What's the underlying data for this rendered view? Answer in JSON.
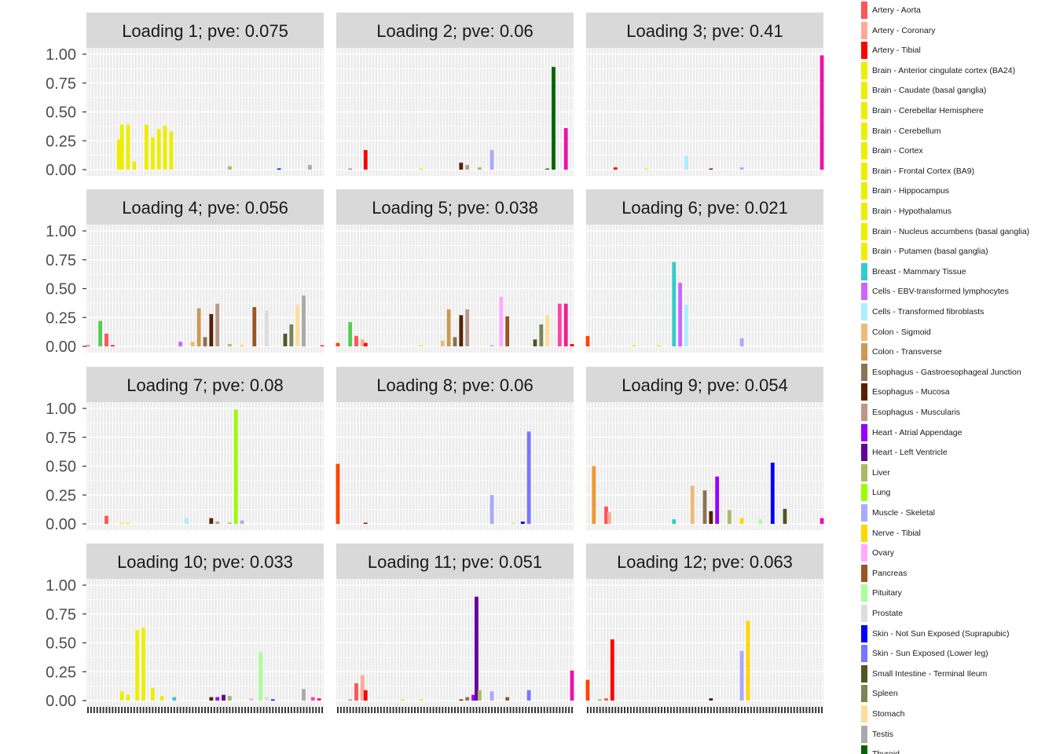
{
  "chart_data": {
    "type": "bar",
    "facet_layout": {
      "cols": 3,
      "rows": 4
    },
    "ylim": [
      0,
      1
    ],
    "y_ticks": [
      "0.00",
      "0.25",
      "0.50",
      "0.75",
      "1.00"
    ],
    "grid": true,
    "legend_position": "right",
    "legend": [
      {
        "name": "Artery - Aorta",
        "color": "#FF5555"
      },
      {
        "name": "Artery - Coronary",
        "color": "#FFAA99"
      },
      {
        "name": "Artery - Tibial",
        "color": "#FF0000"
      },
      {
        "name": "Brain - Anterior cingulate cortex (BA24)",
        "color": "#EEEE00"
      },
      {
        "name": "Brain - Caudate (basal ganglia)",
        "color": "#EEEE00"
      },
      {
        "name": "Brain - Cerebellar Hemisphere",
        "color": "#EEEE00"
      },
      {
        "name": "Brain - Cerebellum",
        "color": "#EEEE00"
      },
      {
        "name": "Brain - Cortex",
        "color": "#EEEE00"
      },
      {
        "name": "Brain - Frontal Cortex (BA9)",
        "color": "#EEEE00"
      },
      {
        "name": "Brain - Hippocampus",
        "color": "#EEEE00"
      },
      {
        "name": "Brain - Hypothalamus",
        "color": "#EEEE00"
      },
      {
        "name": "Brain - Nucleus accumbens (basal ganglia)",
        "color": "#EEEE00"
      },
      {
        "name": "Brain - Putamen (basal ganglia)",
        "color": "#EEEE00"
      },
      {
        "name": "Breast - Mammary Tissue",
        "color": "#33CCCC"
      },
      {
        "name": "Cells - EBV-transformed lymphocytes",
        "color": "#CC66FF"
      },
      {
        "name": "Cells - Transformed fibroblasts",
        "color": "#AAEEFF"
      },
      {
        "name": "Colon - Sigmoid",
        "color": "#EEBB77"
      },
      {
        "name": "Colon - Transverse",
        "color": "#CC9955"
      },
      {
        "name": "Esophagus - Gastroesophageal Junction",
        "color": "#8B7355"
      },
      {
        "name": "Esophagus - Mucosa",
        "color": "#552200"
      },
      {
        "name": "Esophagus - Muscularis",
        "color": "#BB9988"
      },
      {
        "name": "Heart - Atrial Appendage",
        "color": "#9900FF"
      },
      {
        "name": "Heart - Left Ventricle",
        "color": "#660099"
      },
      {
        "name": "Liver",
        "color": "#AABB66"
      },
      {
        "name": "Lung",
        "color": "#99FF00"
      },
      {
        "name": "Muscle - Skeletal",
        "color": "#AAAAFF"
      },
      {
        "name": "Nerve - Tibial",
        "color": "#FFD700"
      },
      {
        "name": "Ovary",
        "color": "#FFAAFF"
      },
      {
        "name": "Pancreas",
        "color": "#995522"
      },
      {
        "name": "Pituitary",
        "color": "#AAFF99"
      },
      {
        "name": "Prostate",
        "color": "#DDDDDD"
      },
      {
        "name": "Skin - Not Sun Exposed (Suprapubic)",
        "color": "#0000FF"
      },
      {
        "name": "Skin - Sun Exposed (Lower leg)",
        "color": "#7777FF"
      },
      {
        "name": "Small Intestine - Terminal Ileum",
        "color": "#555522"
      },
      {
        "name": "Spleen",
        "color": "#778855"
      },
      {
        "name": "Stomach",
        "color": "#FFDD99"
      },
      {
        "name": "Testis",
        "color": "#AAAAAA"
      },
      {
        "name": "Thyroid",
        "color": "#006600"
      }
    ],
    "panels": [
      {
        "title": "Loading 1; pve: 0.075",
        "bars": [
          {
            "i": 10,
            "v": 0.26,
            "c": "#EEEE00"
          },
          {
            "i": 11,
            "v": 0.39,
            "c": "#EEEE00"
          },
          {
            "i": 13,
            "v": 0.39,
            "c": "#EEEE00"
          },
          {
            "i": 15,
            "v": 0.07,
            "c": "#EEEE00"
          },
          {
            "i": 19,
            "v": 0.39,
            "c": "#EEEE00"
          },
          {
            "i": 21,
            "v": 0.28,
            "c": "#EEEE00"
          },
          {
            "i": 23,
            "v": 0.35,
            "c": "#EEEE00"
          },
          {
            "i": 25,
            "v": 0.38,
            "c": "#EEEE00"
          },
          {
            "i": 27,
            "v": 0.33,
            "c": "#EEEE00"
          },
          {
            "i": 46,
            "v": 0.03,
            "c": "#AABB66"
          },
          {
            "i": 62,
            "v": 0.01,
            "c": "#0000FF"
          },
          {
            "i": 72,
            "v": 0.04,
            "c": "#AAAAAA"
          }
        ]
      },
      {
        "title": "Loading 2; pve: 0.06",
        "bars": [
          {
            "i": 4,
            "v": 0.01,
            "c": "#55CC55"
          },
          {
            "i": 9,
            "v": 0.17,
            "c": "#FF0000"
          },
          {
            "i": 27,
            "v": 0.01,
            "c": "#EEEE00"
          },
          {
            "i": 40,
            "v": 0.06,
            "c": "#552200"
          },
          {
            "i": 42,
            "v": 0.04,
            "c": "#BB9988"
          },
          {
            "i": 46,
            "v": 0.02,
            "c": "#AABB66"
          },
          {
            "i": 50,
            "v": 0.17,
            "c": "#AAAAFF"
          },
          {
            "i": 68,
            "v": 0.01,
            "c": "#555522"
          },
          {
            "i": 70,
            "v": 0.89,
            "c": "#006600"
          },
          {
            "i": 74,
            "v": 0.36,
            "c": "#EE11AA"
          }
        ]
      },
      {
        "title": "Loading 3; pve: 0.41",
        "bars": [
          {
            "i": 9,
            "v": 0.02,
            "c": "#FF0000"
          },
          {
            "i": 19,
            "v": 0.01,
            "c": "#EEEE00"
          },
          {
            "i": 32,
            "v": 0.12,
            "c": "#AAEEFF"
          },
          {
            "i": 40,
            "v": 0.01,
            "c": "#552200"
          },
          {
            "i": 50,
            "v": 0.02,
            "c": "#AAAAFF"
          },
          {
            "i": 76,
            "v": 0.99,
            "c": "#EE11AA"
          }
        ]
      },
      {
        "title": "Loading 4; pve: 0.056",
        "bars": [
          {
            "i": 0,
            "v": 0.01,
            "c": "#FF5555"
          },
          {
            "i": 4,
            "v": 0.22,
            "c": "#55CC55"
          },
          {
            "i": 6,
            "v": 0.11,
            "c": "#FF5555"
          },
          {
            "i": 8,
            "v": 0.01,
            "c": "#FF0000"
          },
          {
            "i": 30,
            "v": 0.04,
            "c": "#CC66FF"
          },
          {
            "i": 34,
            "v": 0.04,
            "c": "#EEBB77"
          },
          {
            "i": 36,
            "v": 0.33,
            "c": "#CC9955"
          },
          {
            "i": 38,
            "v": 0.08,
            "c": "#8B7355"
          },
          {
            "i": 40,
            "v": 0.28,
            "c": "#552200"
          },
          {
            "i": 42,
            "v": 0.37,
            "c": "#BB9988"
          },
          {
            "i": 46,
            "v": 0.02,
            "c": "#AABB66"
          },
          {
            "i": 50,
            "v": 0.01,
            "c": "#FFD700"
          },
          {
            "i": 54,
            "v": 0.34,
            "c": "#995522"
          },
          {
            "i": 58,
            "v": 0.31,
            "c": "#DDDDDD"
          },
          {
            "i": 64,
            "v": 0.11,
            "c": "#555522"
          },
          {
            "i": 66,
            "v": 0.19,
            "c": "#778855"
          },
          {
            "i": 68,
            "v": 0.36,
            "c": "#FFDD99"
          },
          {
            "i": 70,
            "v": 0.44,
            "c": "#AAAAAA"
          },
          {
            "i": 76,
            "v": 0.01,
            "c": "#EE11AA"
          }
        ]
      },
      {
        "title": "Loading 5; pve: 0.038",
        "bars": [
          {
            "i": 0,
            "v": 0.03,
            "c": "#FF4500"
          },
          {
            "i": 4,
            "v": 0.21,
            "c": "#55CC55"
          },
          {
            "i": 6,
            "v": 0.09,
            "c": "#FF5555"
          },
          {
            "i": 8,
            "v": 0.06,
            "c": "#FFAA99"
          },
          {
            "i": 9,
            "v": 0.03,
            "c": "#FF0000"
          },
          {
            "i": 27,
            "v": 0.01,
            "c": "#EEEE00"
          },
          {
            "i": 34,
            "v": 0.05,
            "c": "#EEBB77"
          },
          {
            "i": 36,
            "v": 0.32,
            "c": "#CC9955"
          },
          {
            "i": 38,
            "v": 0.08,
            "c": "#8B7355"
          },
          {
            "i": 40,
            "v": 0.27,
            "c": "#552200"
          },
          {
            "i": 42,
            "v": 0.32,
            "c": "#BB9988"
          },
          {
            "i": 50,
            "v": 0.01,
            "c": "#AAAAFF"
          },
          {
            "i": 53,
            "v": 0.43,
            "c": "#FFAAFF"
          },
          {
            "i": 55,
            "v": 0.26,
            "c": "#995522"
          },
          {
            "i": 64,
            "v": 0.06,
            "c": "#555522"
          },
          {
            "i": 66,
            "v": 0.19,
            "c": "#778855"
          },
          {
            "i": 68,
            "v": 0.27,
            "c": "#FFDD99"
          },
          {
            "i": 72,
            "v": 0.37,
            "c": "#FF44AA"
          },
          {
            "i": 74,
            "v": 0.37,
            "c": "#EE2288"
          },
          {
            "i": 76,
            "v": 0.02,
            "c": "#FF0000"
          }
        ]
      },
      {
        "title": "Loading 6; pve: 0.021",
        "bars": [
          {
            "i": 0,
            "v": 0.09,
            "c": "#FF4500"
          },
          {
            "i": 15,
            "v": 0.01,
            "c": "#EEEE00"
          },
          {
            "i": 23,
            "v": 0.01,
            "c": "#EEEE00"
          },
          {
            "i": 28,
            "v": 0.73,
            "c": "#33CCCC"
          },
          {
            "i": 30,
            "v": 0.55,
            "c": "#CC66FF"
          },
          {
            "i": 32,
            "v": 0.36,
            "c": "#AAEEFF"
          },
          {
            "i": 50,
            "v": 0.07,
            "c": "#AAAAFF"
          }
        ]
      },
      {
        "title": "Loading 7; pve: 0.08",
        "bars": [
          {
            "i": 6,
            "v": 0.07,
            "c": "#FF5555"
          },
          {
            "i": 11,
            "v": 0.01,
            "c": "#EEEE00"
          },
          {
            "i": 13,
            "v": 0.01,
            "c": "#EEEE00"
          },
          {
            "i": 32,
            "v": 0.05,
            "c": "#AAEEFF"
          },
          {
            "i": 40,
            "v": 0.05,
            "c": "#552200"
          },
          {
            "i": 42,
            "v": 0.02,
            "c": "#BB9988"
          },
          {
            "i": 46,
            "v": 0.01,
            "c": "#AABB66"
          },
          {
            "i": 48,
            "v": 0.99,
            "c": "#99FF00"
          },
          {
            "i": 50,
            "v": 0.03,
            "c": "#AAAAFF"
          }
        ]
      },
      {
        "title": "Loading 8; pve: 0.06",
        "bars": [
          {
            "i": 0,
            "v": 0.52,
            "c": "#FF4500"
          },
          {
            "i": 9,
            "v": 0.01,
            "c": "#AA0000"
          },
          {
            "i": 50,
            "v": 0.25,
            "c": "#AAAAFF"
          },
          {
            "i": 57,
            "v": 0.01,
            "c": "#AAFF99"
          },
          {
            "i": 60,
            "v": 0.02,
            "c": "#0000FF"
          },
          {
            "i": 62,
            "v": 0.8,
            "c": "#7777FF"
          }
        ]
      },
      {
        "title": "Loading 9; pve: 0.054",
        "bars": [
          {
            "i": 2,
            "v": 0.5,
            "c": "#EE9933"
          },
          {
            "i": 6,
            "v": 0.15,
            "c": "#FF5555"
          },
          {
            "i": 7,
            "v": 0.1,
            "c": "#FFAA99"
          },
          {
            "i": 28,
            "v": 0.04,
            "c": "#33CCCC"
          },
          {
            "i": 34,
            "v": 0.33,
            "c": "#EEBB77"
          },
          {
            "i": 38,
            "v": 0.29,
            "c": "#8B7355"
          },
          {
            "i": 40,
            "v": 0.11,
            "c": "#552200"
          },
          {
            "i": 42,
            "v": 0.41,
            "c": "#9900FF"
          },
          {
            "i": 46,
            "v": 0.12,
            "c": "#AABB66"
          },
          {
            "i": 50,
            "v": 0.05,
            "c": "#FFD700"
          },
          {
            "i": 56,
            "v": 0.04,
            "c": "#AAFF99"
          },
          {
            "i": 60,
            "v": 0.53,
            "c": "#0000FF"
          },
          {
            "i": 64,
            "v": 0.13,
            "c": "#555522"
          },
          {
            "i": 76,
            "v": 0.05,
            "c": "#EE11AA"
          }
        ]
      },
      {
        "title": "Loading 10; pve: 0.033",
        "bars": [
          {
            "i": 11,
            "v": 0.08,
            "c": "#EEEE00"
          },
          {
            "i": 13,
            "v": 0.05,
            "c": "#EEEE00"
          },
          {
            "i": 16,
            "v": 0.61,
            "c": "#EEEE00"
          },
          {
            "i": 18,
            "v": 0.63,
            "c": "#EEEE00"
          },
          {
            "i": 21,
            "v": 0.11,
            "c": "#EEEE00"
          },
          {
            "i": 24,
            "v": 0.04,
            "c": "#EEEE00"
          },
          {
            "i": 28,
            "v": 0.03,
            "c": "#33CCCC"
          },
          {
            "i": 40,
            "v": 0.03,
            "c": "#552200"
          },
          {
            "i": 42,
            "v": 0.03,
            "c": "#9900FF"
          },
          {
            "i": 44,
            "v": 0.05,
            "c": "#660099"
          },
          {
            "i": 46,
            "v": 0.04,
            "c": "#AABB66"
          },
          {
            "i": 53,
            "v": 0.02,
            "c": "#FFAAFF"
          },
          {
            "i": 56,
            "v": 0.42,
            "c": "#AAFF99"
          },
          {
            "i": 58,
            "v": 0.03,
            "c": "#DDDDDD"
          },
          {
            "i": 60,
            "v": 0.01,
            "c": "#0000FF"
          },
          {
            "i": 70,
            "v": 0.1,
            "c": "#AAAAAA"
          },
          {
            "i": 73,
            "v": 0.03,
            "c": "#FF44AA"
          },
          {
            "i": 75,
            "v": 0.02,
            "c": "#EE2288"
          }
        ]
      },
      {
        "title": "Loading 11; pve: 0.051",
        "bars": [
          {
            "i": 4,
            "v": 0.01,
            "c": "#55CC55"
          },
          {
            "i": 6,
            "v": 0.15,
            "c": "#FF5555"
          },
          {
            "i": 8,
            "v": 0.22,
            "c": "#FFAA99"
          },
          {
            "i": 9,
            "v": 0.09,
            "c": "#FF0000"
          },
          {
            "i": 21,
            "v": 0.01,
            "c": "#EEEE00"
          },
          {
            "i": 27,
            "v": 0.01,
            "c": "#EEEE00"
          },
          {
            "i": 40,
            "v": 0.01,
            "c": "#552200"
          },
          {
            "i": 42,
            "v": 0.03,
            "c": "#8B7355"
          },
          {
            "i": 44,
            "v": 0.05,
            "c": "#9900FF"
          },
          {
            "i": 45,
            "v": 0.9,
            "c": "#660099"
          },
          {
            "i": 46,
            "v": 0.09,
            "c": "#AABB66"
          },
          {
            "i": 50,
            "v": 0.08,
            "c": "#AAAAFF"
          },
          {
            "i": 55,
            "v": 0.03,
            "c": "#995522"
          },
          {
            "i": 62,
            "v": 0.09,
            "c": "#7777FF"
          },
          {
            "i": 76,
            "v": 0.26,
            "c": "#EE11AA"
          }
        ]
      },
      {
        "title": "Loading 12; pve: 0.063",
        "bars": [
          {
            "i": 0,
            "v": 0.18,
            "c": "#FF4500"
          },
          {
            "i": 4,
            "v": 0.01,
            "c": "#55CC55"
          },
          {
            "i": 6,
            "v": 0.02,
            "c": "#FF5555"
          },
          {
            "i": 8,
            "v": 0.53,
            "c": "#FF0000"
          },
          {
            "i": 40,
            "v": 0.02,
            "c": "#552200"
          },
          {
            "i": 50,
            "v": 0.43,
            "c": "#AAAAFF"
          },
          {
            "i": 52,
            "v": 0.69,
            "c": "#FFD700"
          }
        ]
      }
    ]
  }
}
